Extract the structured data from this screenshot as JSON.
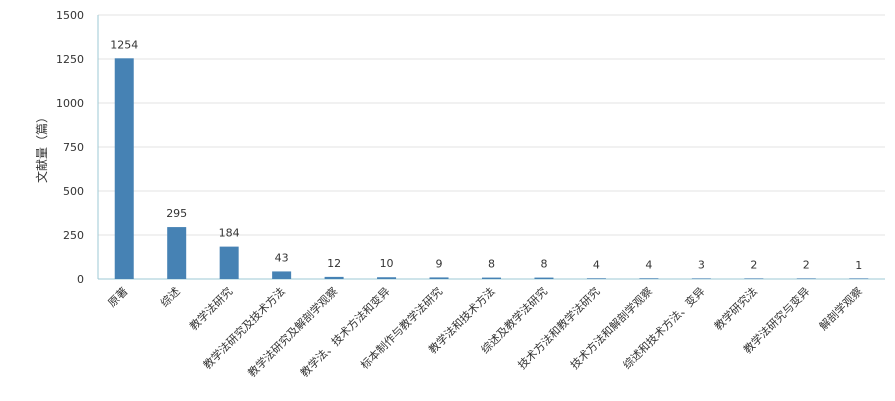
{
  "chart_data": {
    "type": "bar",
    "ylabel": "文献量（篇）",
    "ylim": [
      0,
      1500
    ],
    "yticks": [
      0,
      250,
      500,
      750,
      1000,
      1250,
      1500
    ],
    "grid": true,
    "bar_color": "#4682b4",
    "categories": [
      "原著",
      "综述",
      "教学法研究",
      "教学法研究及技术方法",
      "教学法研究及解剖学观察",
      "教学法、技术方法和变异",
      "标本制作与教学法研究",
      "教学法和技术方法",
      "综述及教学法研究",
      "技术方法和教学法研究",
      "技术方法和解剖学观察",
      "综述和技术方法、变异",
      "教学研究法",
      "教学法研究与变异",
      "解剖学观察"
    ],
    "values": [
      1254,
      295,
      184,
      43,
      12,
      10,
      9,
      8,
      8,
      4,
      4,
      3,
      2,
      2,
      1
    ]
  }
}
